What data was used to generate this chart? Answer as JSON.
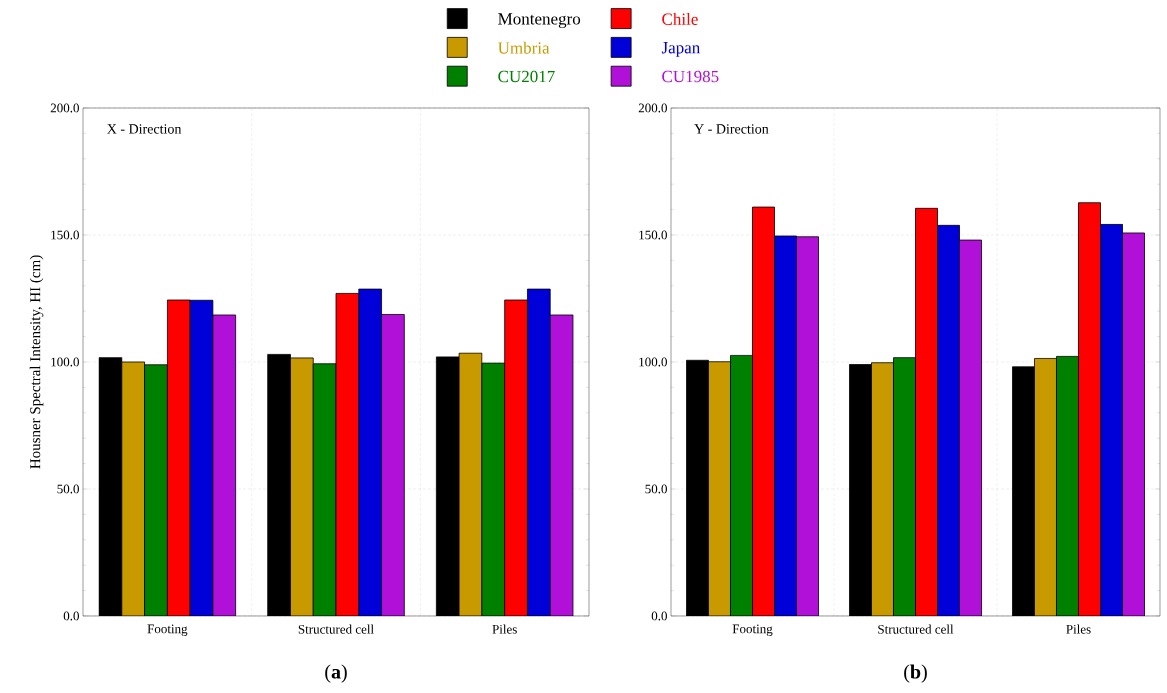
{
  "chart_data": [
    {
      "type": "bar",
      "title": "X - Direction",
      "ylabel": "Housner Spectral Intensity, HI (cm)",
      "annotations": [
        "(**a**)"
      ],
      "categories": [
        "Footing",
        "Structured cell",
        "Piles"
      ],
      "ylim": [
        0,
        200
      ],
      "yticks": [
        {
          "value": 0,
          "label": "0.0"
        },
        {
          "value": 50,
          "label": "50.0"
        },
        {
          "value": 100,
          "label": "100.0"
        },
        {
          "value": 150,
          "label": "150.0"
        },
        {
          "value": 200,
          "label": "200.0"
        }
      ],
      "grid": true,
      "legend": "top",
      "series": [
        {
          "name": "Montenegro",
          "color": "#000000",
          "values": [
            101.7,
            103.0,
            102.0
          ]
        },
        {
          "name": "Umbria",
          "color": "#c89a00",
          "values": [
            100.0,
            101.6,
            103.5
          ]
        },
        {
          "name": "CU2017",
          "color": "#008000",
          "values": [
            98.9,
            99.3,
            99.6
          ]
        },
        {
          "name": "Chile",
          "color": "#ff0000",
          "values": [
            124.4,
            127.0,
            124.4
          ]
        },
        {
          "name": "Japan",
          "color": "#0000d8",
          "values": [
            124.3,
            128.7,
            128.7
          ]
        },
        {
          "name": "CU1985",
          "color": "#b010d8",
          "values": [
            118.5,
            118.7,
            118.5
          ]
        }
      ]
    },
    {
      "type": "bar",
      "title": "Y - Direction",
      "annotations": [
        "(**b**)"
      ],
      "categories": [
        "Footing",
        "Structured cell",
        "Piles"
      ],
      "ylim": [
        0,
        200
      ],
      "yticks": [
        {
          "value": 0,
          "label": "0.0"
        },
        {
          "value": 50,
          "label": "50.0"
        },
        {
          "value": 100,
          "label": "100.0"
        },
        {
          "value": 150,
          "label": "150.0"
        },
        {
          "value": 200,
          "label": "200.0"
        }
      ],
      "grid": true,
      "series": [
        {
          "color": "#000000",
          "values": [
            100.7,
            99.0,
            98.1
          ]
        },
        {
          "color": "#c89a00",
          "values": [
            100.1,
            99.7,
            101.4
          ]
        },
        {
          "color": "#008000",
          "values": [
            102.6,
            101.7,
            102.2
          ]
        },
        {
          "color": "#ff0000",
          "values": [
            161.0,
            160.5,
            162.7
          ]
        },
        {
          "color": "#0000d8",
          "values": [
            149.6,
            153.8,
            154.2
          ]
        },
        {
          "color": "#b010d8",
          "values": [
            149.3,
            148.0,
            150.8
          ]
        }
      ]
    }
  ]
}
